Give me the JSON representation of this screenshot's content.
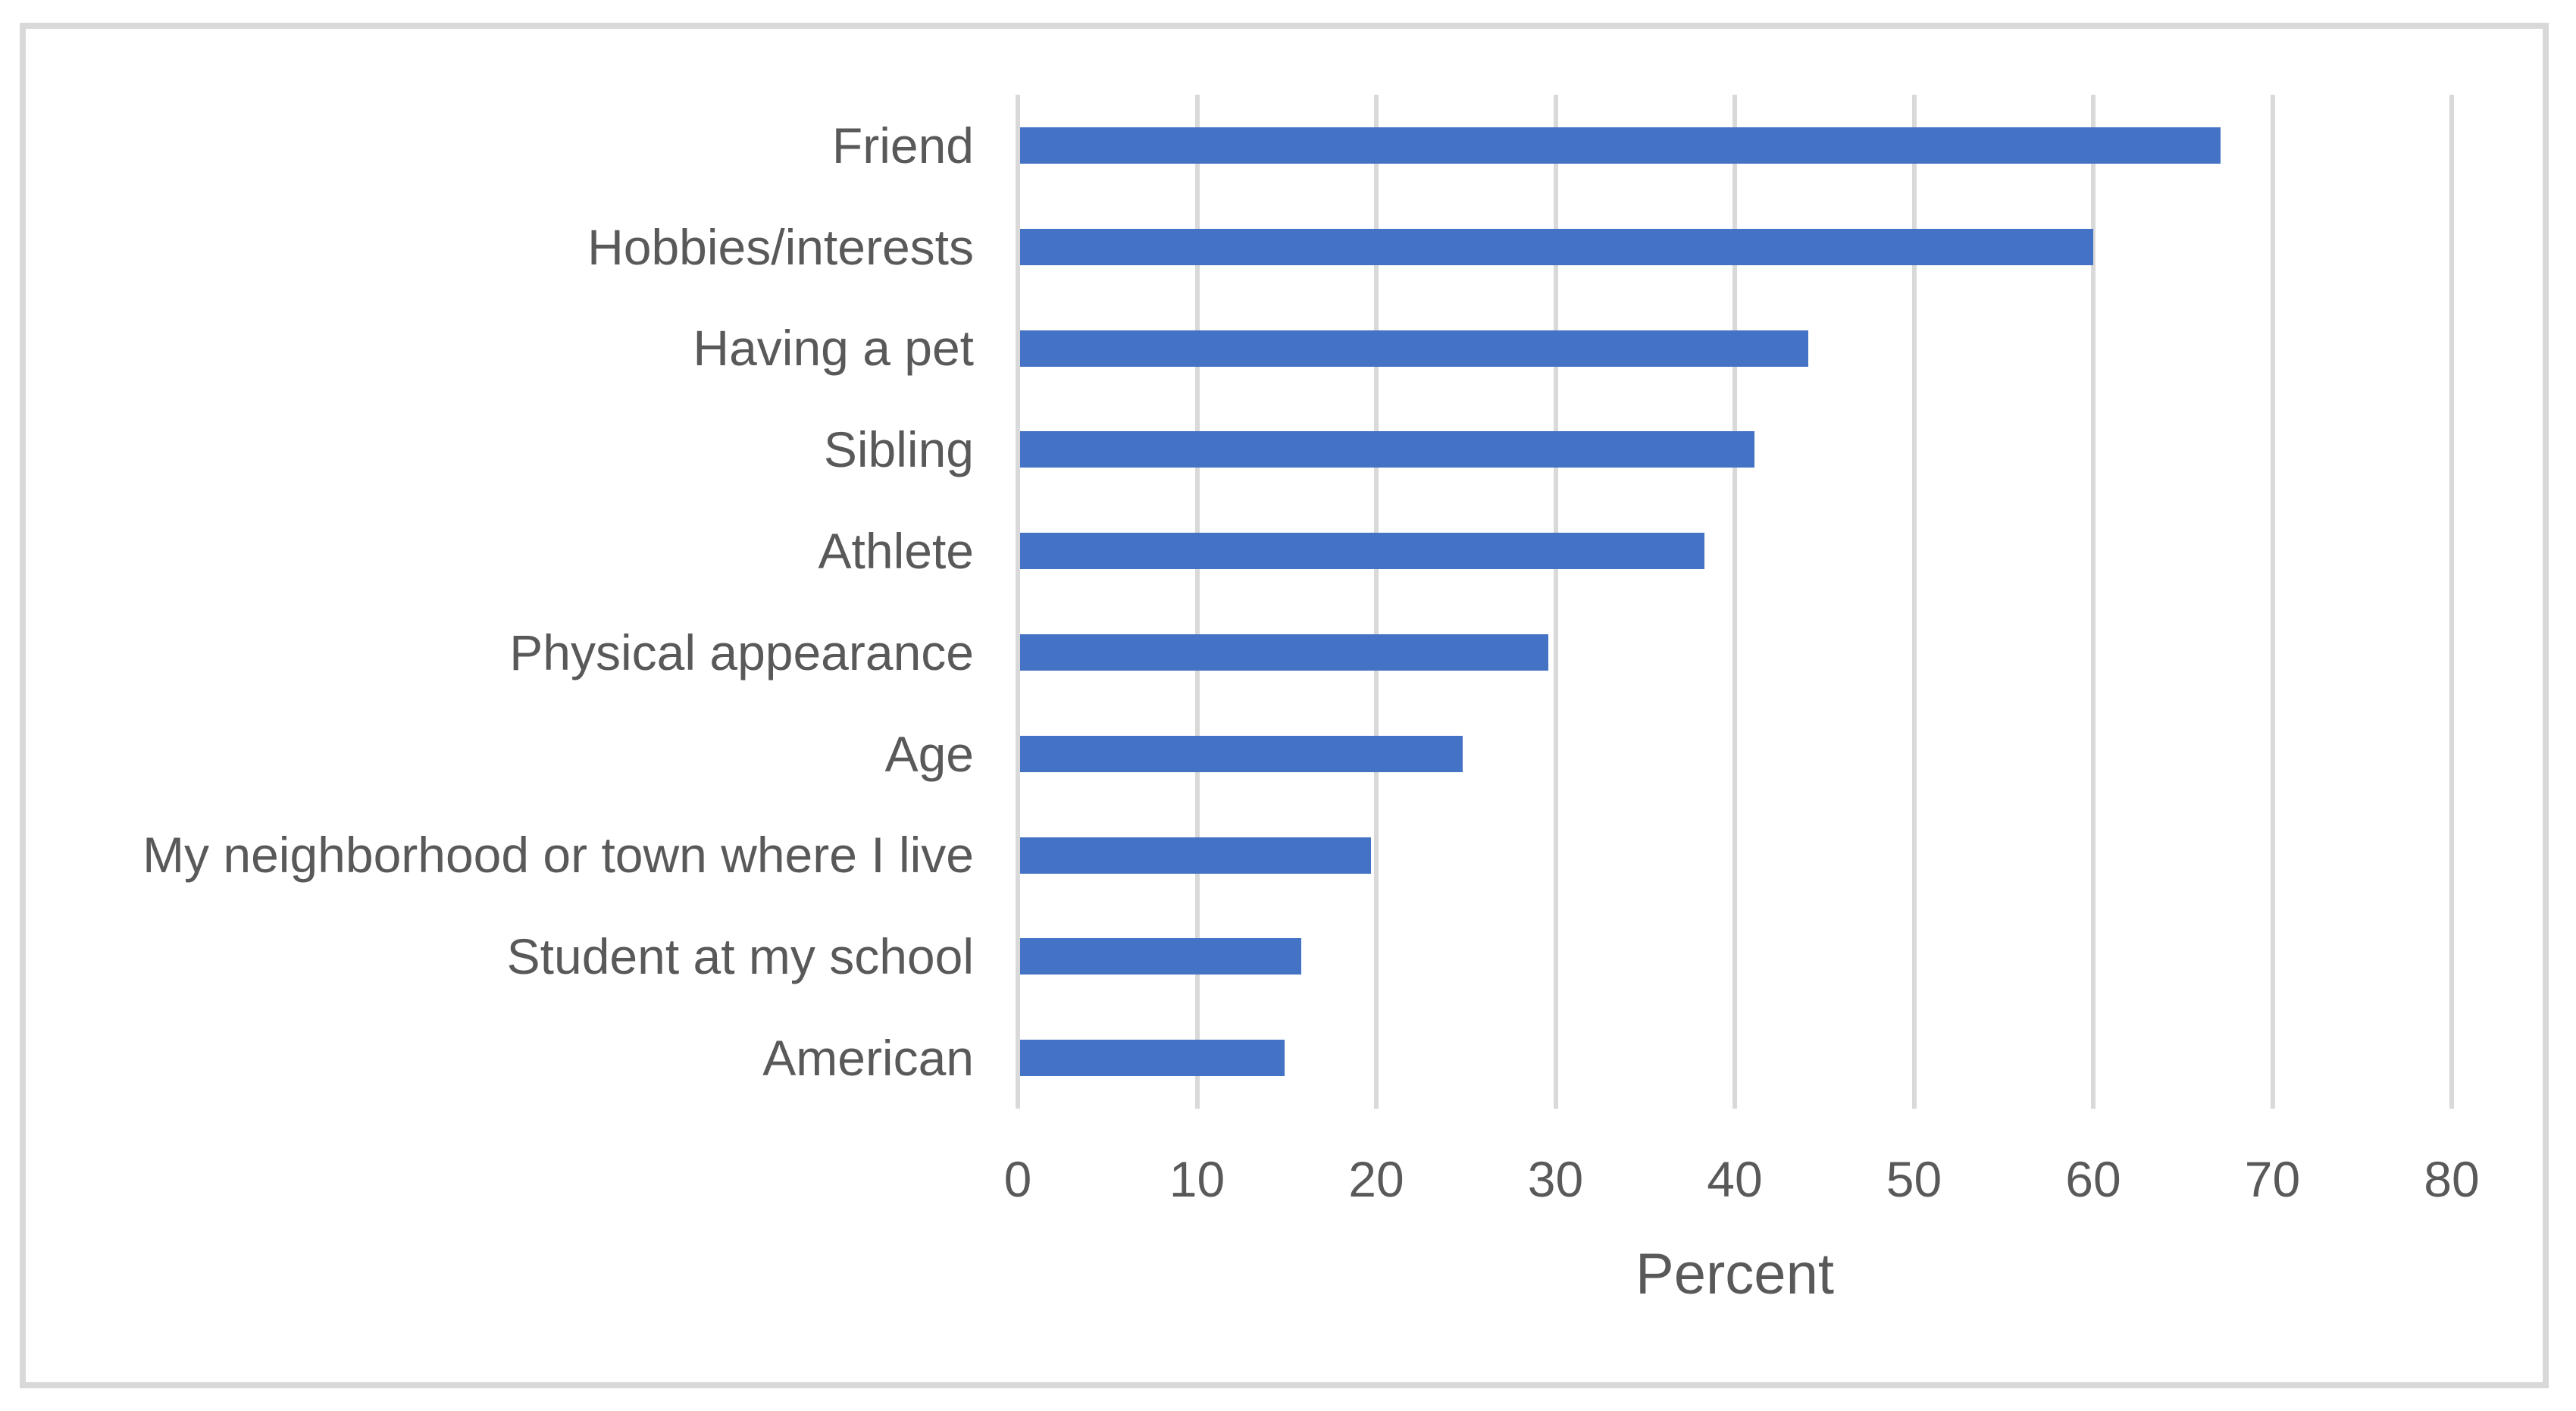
{
  "figure": {
    "background": "#FFFFFF",
    "border_color": "#D9D9D9"
  },
  "chart_data": {
    "type": "bar",
    "orientation": "horizontal",
    "title": "",
    "xlabel": "Percent",
    "ylabel": "",
    "categories": [
      "Friend",
      "Hobbies/interests",
      "Having a pet",
      "Sibling",
      "Athlete",
      "Physical appearance",
      "Age",
      "My neighborhood or town where I live",
      "Student at my school",
      "American"
    ],
    "values": [
      67.1,
      60,
      44.1,
      41.1,
      38.3,
      29.6,
      24.8,
      19.7,
      15.8,
      14.9
    ],
    "xlim": [
      0,
      80
    ],
    "xticks": [
      0,
      10,
      20,
      30,
      40,
      50,
      60,
      70,
      80
    ],
    "grid": "vertical-gridlines-on",
    "legend": "none",
    "bar_color": "#4472C4",
    "gridline_color": "#D9D9D9",
    "text_color": "#595959"
  }
}
